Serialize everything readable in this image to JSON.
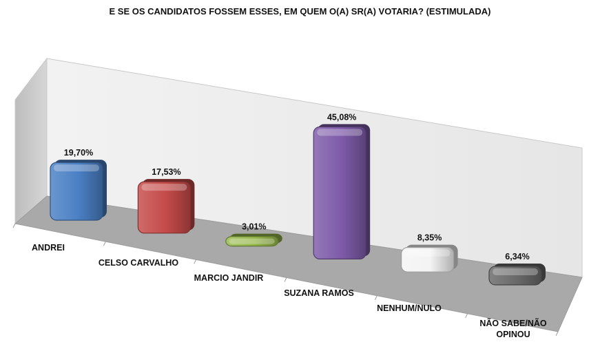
{
  "chart_data": {
    "type": "bar",
    "title": "E SE OS CANDIDATOS FOSSEM ESSES, EM QUEM O(A) SR(A) VOTARIA? (ESTIMULADA)",
    "categories": [
      "ANDREI",
      "CELSO CARVALHO",
      "MARCIO JANDIR",
      "SUZANA RAMOS",
      "NENHUM/NULO",
      "NÃO SABE/NÃO OPINOU"
    ],
    "category_lines": [
      [
        "ANDREI"
      ],
      [
        "CELSO CARVALHO"
      ],
      [
        "MARCIO JANDIR"
      ],
      [
        "SUZANA RAMOS"
      ],
      [
        "NENHUM/NULO"
      ],
      [
        "NÃO SABE/NÃO",
        "OPINOU"
      ]
    ],
    "values": [
      19.7,
      17.53,
      3.01,
      45.08,
      8.35,
      6.34
    ],
    "value_labels": [
      "19,70%",
      "17,53%",
      "3,01%",
      "45,08%",
      "8,35%",
      "6,34%"
    ],
    "colors": [
      "#4a7fc4",
      "#c44a48",
      "#95b84a",
      "#7d5aa8",
      "#f4f4f4",
      "#686868"
    ],
    "ylim": [
      0,
      50
    ],
    "grid": false,
    "legend": "none",
    "style": "3d-column"
  }
}
